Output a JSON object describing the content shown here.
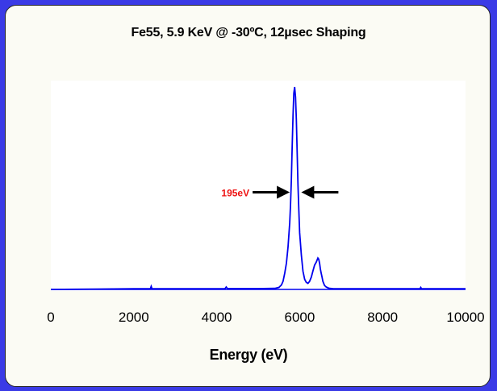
{
  "chart_data": {
    "type": "line",
    "title": "Fe55,  5.9 KeV @ -30ºC, 12µsec Shaping",
    "xlabel": "Energy (eV)",
    "ylabel": "",
    "xlim": [
      0,
      10000
    ],
    "ylim": [
      0,
      1.0
    ],
    "xticks": [
      "0",
      "2000",
      "4000",
      "6000",
      "8000",
      "10000"
    ],
    "grid": false,
    "legend": "none",
    "line_color": "#0000ee",
    "annotation": {
      "text": "195eV",
      "color": "#ee1111",
      "fwhm_left_ev": 5800,
      "fwhm_right_ev": 6000,
      "y": 0.48
    },
    "series": [
      {
        "x": [
          0,
          2000,
          2400,
          2420,
          2440,
          3000,
          4000,
          4200,
          4230,
          4260,
          5000,
          5400,
          5500,
          5560,
          5600,
          5640,
          5680,
          5720,
          5760,
          5780,
          5800,
          5820,
          5840,
          5860,
          5880,
          5900,
          5920,
          5940,
          5960,
          5980,
          6000,
          6040,
          6080,
          6120,
          6160,
          6200,
          6240,
          6280,
          6320,
          6360,
          6400,
          6440,
          6460,
          6480,
          6500,
          6520,
          6540,
          6560,
          6600,
          6640,
          6680,
          6720,
          6800,
          7000,
          8000,
          8900,
          8920,
          8940,
          10000
        ],
        "y": [
          0,
          0.003,
          0.003,
          0.015,
          0.003,
          0.003,
          0.003,
          0.004,
          0.012,
          0.004,
          0.004,
          0.005,
          0.01,
          0.022,
          0.04,
          0.08,
          0.13,
          0.21,
          0.33,
          0.42,
          0.54,
          0.7,
          0.86,
          0.97,
          1.0,
          0.95,
          0.84,
          0.68,
          0.52,
          0.39,
          0.28,
          0.17,
          0.09,
          0.05,
          0.035,
          0.03,
          0.04,
          0.06,
          0.09,
          0.12,
          0.135,
          0.155,
          0.15,
          0.13,
          0.1,
          0.08,
          0.06,
          0.04,
          0.02,
          0.012,
          0.008,
          0.005,
          0.004,
          0.003,
          0.003,
          0.003,
          0.01,
          0.003,
          0.003
        ]
      }
    ]
  }
}
